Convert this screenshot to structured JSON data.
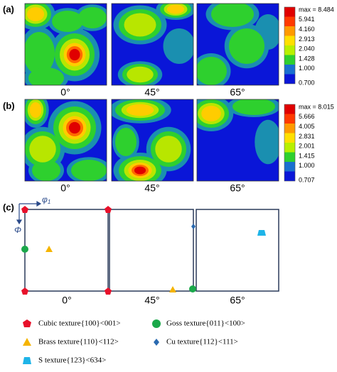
{
  "panels": [
    {
      "label": "(a)",
      "angles": [
        "0°",
        "45°",
        "65°"
      ],
      "scale": [
        "max = 8.484",
        "5.941",
        "4.160",
        "2.913",
        "2.040",
        "1.428",
        "1.000",
        "0.700"
      ]
    },
    {
      "label": "(b)",
      "angles": [
        "0°",
        "45°",
        "65°"
      ],
      "scale": [
        "max = 8.015",
        "5.666",
        "4.005",
        "2.831",
        "2.001",
        "1.415",
        "1.000",
        "0.707"
      ]
    },
    {
      "label": "(c)",
      "angles": [
        "0°",
        "45°",
        "65°"
      ],
      "axis_x": {
        "symbol": "φ",
        "subscript": "1"
      },
      "axis_y": "Φ",
      "legend": [
        "Cubic texture{100}<001>",
        "Goss texture{011}<100>",
        "Brass texture{110}<112>",
        "Cu texture{112}<111>",
        "S texture{123}<634>"
      ]
    }
  ]
}
